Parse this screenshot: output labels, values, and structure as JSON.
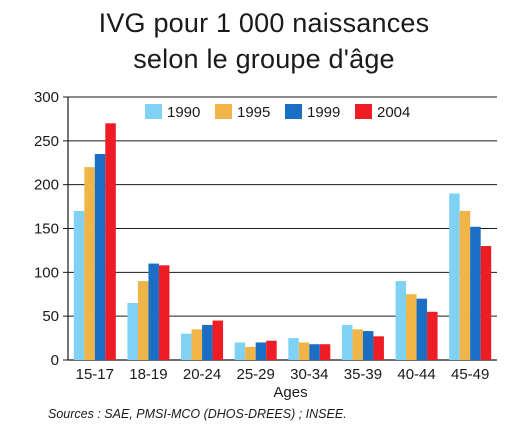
{
  "chart_data": {
    "type": "bar",
    "title_line1": "IVG pour 1 000 naissances",
    "title_line2": "selon le groupe d'âge",
    "xlabel": "Ages",
    "ylabel": "",
    "ylim": [
      0,
      300
    ],
    "yticks": [
      0,
      50,
      100,
      150,
      200,
      250,
      300
    ],
    "grid": true,
    "legend_position": "top-center",
    "categories": [
      "15-17",
      "18-19",
      "20-24",
      "25-29",
      "30-34",
      "35-39",
      "40-44",
      "45-49"
    ],
    "series": [
      {
        "name": "1990",
        "color": "#7fd2f4",
        "values": [
          170,
          65,
          30,
          20,
          25,
          40,
          90,
          190
        ]
      },
      {
        "name": "1995",
        "color": "#f0b548",
        "values": [
          220,
          90,
          35,
          15,
          20,
          35,
          75,
          170
        ]
      },
      {
        "name": "1999",
        "color": "#1a6fc4",
        "values": [
          235,
          110,
          40,
          20,
          18,
          33,
          70,
          152
        ]
      },
      {
        "name": "2004",
        "color": "#ee1c25",
        "values": [
          270,
          108,
          45,
          22,
          18,
          27,
          55,
          130
        ]
      }
    ],
    "source": "Sources : SAE, PMSI-MCO (DHOS-DREES) ; INSEE."
  }
}
